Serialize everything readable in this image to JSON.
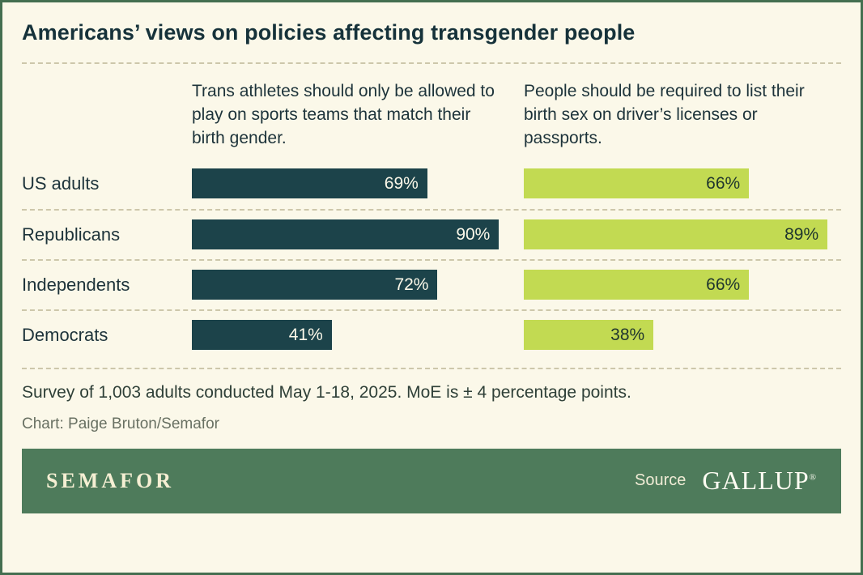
{
  "title": "Americans’ views on policies affecting transgender people",
  "chart_data": {
    "type": "bar",
    "orientation": "horizontal",
    "categories": [
      "US adults",
      "Republicans",
      "Independents",
      "Democrats"
    ],
    "series": [
      {
        "name": "Trans athletes should only be allowed to play on sports teams that match their birth gender.",
        "values": [
          69,
          90,
          72,
          41
        ],
        "labels": [
          "69%",
          "90%",
          "72%",
          "41%"
        ],
        "color": "#1c434a"
      },
      {
        "name": "People should be required to list their birth sex on driver’s licenses or passports.",
        "values": [
          66,
          89,
          66,
          38
        ],
        "labels": [
          "66%",
          "89%",
          "66%",
          "38%"
        ],
        "color": "#c2da52"
      }
    ],
    "value_suffix": "%",
    "xlim": [
      0,
      100
    ],
    "grid": "off",
    "legend_position": "column-headers"
  },
  "notes": {
    "survey": "Survey of 1,003 adults conducted May 1-18, 2025. MoE is ± 4 percentage points.",
    "credit": "Chart: Paige Bruton/Semafor"
  },
  "footer": {
    "brand": "SEMAFOR",
    "source_label": "Source",
    "source_name": "GALLUP",
    "registered": "®",
    "bar_color": "#4e7b5b"
  },
  "colors": {
    "background": "#fbf8e9",
    "border": "#446f50",
    "title_text": "#16323a",
    "dashed_rule": "#cdc7ab"
  }
}
